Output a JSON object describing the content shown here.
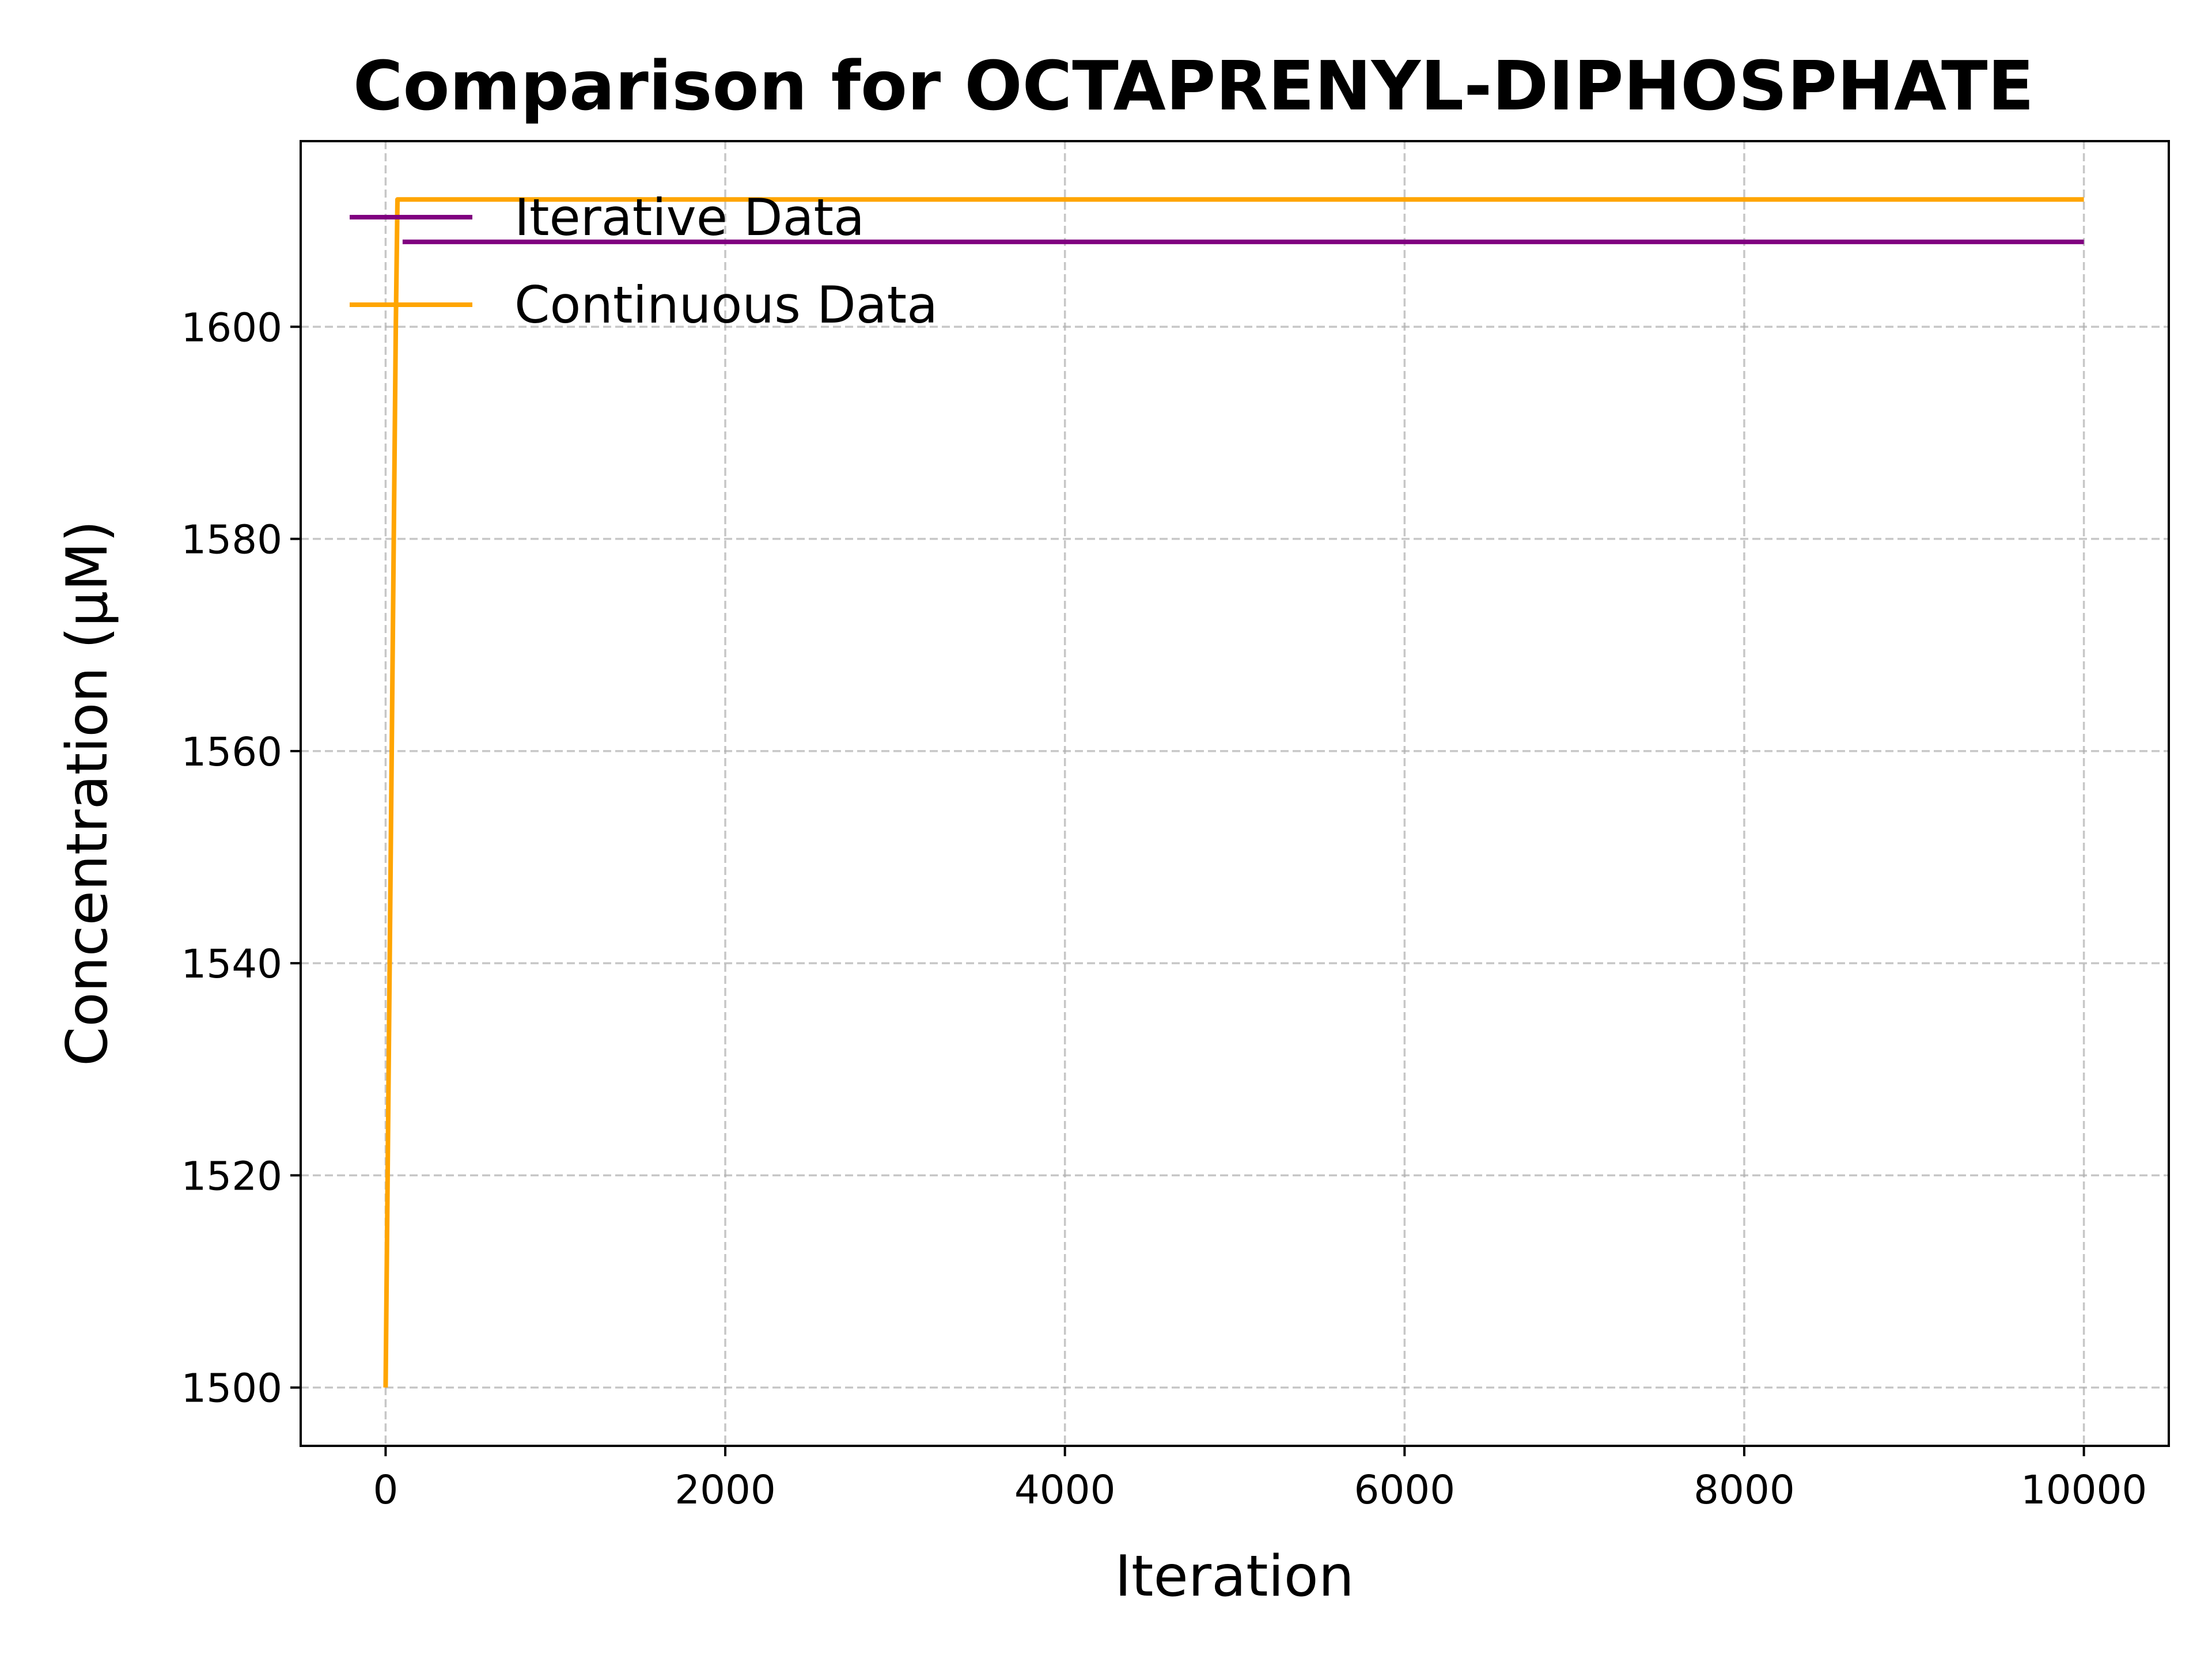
{
  "chart_data": {
    "type": "line",
    "title": "Comparison for OCTAPRENYL-DIPHOSPHATE",
    "xlabel": "Iteration",
    "ylabel": "Concentration (μM)",
    "xlim": [
      -500,
      10500
    ],
    "ylim": [
      1494.5,
      1617.5
    ],
    "xticks": [
      0,
      2000,
      4000,
      6000,
      8000,
      10000
    ],
    "yticks": [
      1500,
      1520,
      1540,
      1560,
      1580,
      1600
    ],
    "grid": true,
    "legend_position": "upper-left",
    "series": [
      {
        "name": "Iterative Data",
        "color": "#800080",
        "x": [
          100,
          10000
        ],
        "y": [
          1608,
          1608
        ]
      },
      {
        "name": "Continuous Data",
        "color": "#FFA500",
        "x": [
          0,
          60,
          70,
          10000
        ],
        "y": [
          1500,
          1600,
          1612,
          1612
        ]
      }
    ]
  }
}
